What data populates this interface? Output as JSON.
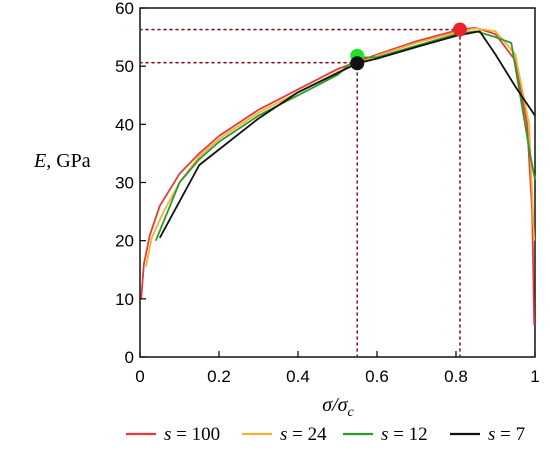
{
  "chart_data": {
    "type": "line",
    "title": "",
    "xlabel_parts": {
      "main": "σ/σ",
      "sub": "c"
    },
    "ylabel_parts": {
      "var": "E",
      "unit": ", GPa"
    },
    "xlim": [
      0,
      1
    ],
    "ylim": [
      0,
      60
    ],
    "xticks": [
      0,
      0.2,
      0.4,
      0.6,
      0.8,
      1
    ],
    "xtick_labels": [
      "0",
      "0.2",
      "0.4",
      "0.6",
      "0.8",
      "1"
    ],
    "yticks": [
      0,
      10,
      20,
      30,
      40,
      50,
      60
    ],
    "ytick_labels": [
      "0",
      "10",
      "20",
      "30",
      "40",
      "50",
      "60"
    ],
    "grid": false,
    "legend_position": "bottom",
    "series": [
      {
        "name": "s = 100",
        "legend_var": "s",
        "legend_val": "100",
        "color": "#e8393a",
        "points": [
          [
            0.003,
            10
          ],
          [
            0.01,
            16
          ],
          [
            0.025,
            21
          ],
          [
            0.05,
            26
          ],
          [
            0.1,
            31.5
          ],
          [
            0.15,
            35
          ],
          [
            0.2,
            38
          ],
          [
            0.3,
            42.5
          ],
          [
            0.4,
            46
          ],
          [
            0.5,
            49.5
          ],
          [
            0.6,
            52
          ],
          [
            0.7,
            54.3
          ],
          [
            0.81,
            56.3
          ],
          [
            0.85,
            56.6
          ],
          [
            0.9,
            55.5
          ],
          [
            0.95,
            51
          ],
          [
            0.98,
            40
          ],
          [
            0.993,
            25
          ],
          [
            0.998,
            5.5
          ]
        ]
      },
      {
        "name": "s = 24",
        "legend_var": "s",
        "legend_val": "24",
        "color": "#f2b532",
        "points": [
          [
            0.015,
            15.5
          ],
          [
            0.03,
            20.5
          ],
          [
            0.06,
            25
          ],
          [
            0.1,
            30
          ],
          [
            0.15,
            34.5
          ],
          [
            0.2,
            37.5
          ],
          [
            0.3,
            42
          ],
          [
            0.4,
            45.5
          ],
          [
            0.5,
            49
          ],
          [
            0.6,
            51.8
          ],
          [
            0.7,
            54
          ],
          [
            0.8,
            55.8
          ],
          [
            0.85,
            56.5
          ],
          [
            0.9,
            56
          ],
          [
            0.95,
            52
          ],
          [
            0.985,
            40
          ],
          [
            0.998,
            20
          ]
        ]
      },
      {
        "name": "s = 12",
        "legend_var": "s",
        "legend_val": "12",
        "color": "#2e9a2e",
        "points": [
          [
            0.04,
            20
          ],
          [
            0.1,
            30
          ],
          [
            0.15,
            34
          ],
          [
            0.2,
            37
          ],
          [
            0.3,
            41.5
          ],
          [
            0.4,
            45
          ],
          [
            0.5,
            48.5
          ],
          [
            0.55,
            51.5
          ],
          [
            0.6,
            51.5
          ],
          [
            0.7,
            53.5
          ],
          [
            0.8,
            55.5
          ],
          [
            0.85,
            56
          ],
          [
            0.9,
            55
          ],
          [
            0.94,
            54
          ],
          [
            0.97,
            42
          ],
          [
            0.99,
            34
          ],
          [
            1.0,
            30.5
          ]
        ]
      },
      {
        "name": "s = 7",
        "legend_var": "s",
        "legend_val": "7",
        "color": "#111111",
        "points": [
          [
            0.05,
            20.5
          ],
          [
            0.15,
            33
          ],
          [
            0.3,
            41
          ],
          [
            0.4,
            45.5
          ],
          [
            0.5,
            48.8
          ],
          [
            0.55,
            50.5
          ],
          [
            0.6,
            51.3
          ],
          [
            0.7,
            53.3
          ],
          [
            0.8,
            55.2
          ],
          [
            0.86,
            56
          ],
          [
            0.9,
            52
          ],
          [
            0.95,
            46.5
          ],
          [
            0.99,
            42.5
          ],
          [
            1.0,
            41.5
          ]
        ]
      }
    ],
    "markers": [
      {
        "x": 0.81,
        "y": 56.3,
        "color": "#e8252a"
      },
      {
        "x": 0.55,
        "y": 51.8,
        "color": "#27e02a"
      },
      {
        "x": 0.55,
        "y": 50.5,
        "color": "#111111"
      }
    ],
    "reference_lines": [
      {
        "type": "horizontal",
        "y": 56.3,
        "x_from": 0,
        "x_to": 0.81,
        "color": "#8b1a1a"
      },
      {
        "type": "horizontal",
        "y": 50.6,
        "x_from": 0,
        "x_to": 0.55,
        "color": "#8b1a1a"
      },
      {
        "type": "vertical",
        "x": 0.81,
        "y_from": 0,
        "y_to": 56.3,
        "color": "#8b1a1a"
      },
      {
        "type": "vertical",
        "x": 0.55,
        "y_from": 0,
        "y_to": 51,
        "color": "#8b1a1a"
      }
    ]
  }
}
